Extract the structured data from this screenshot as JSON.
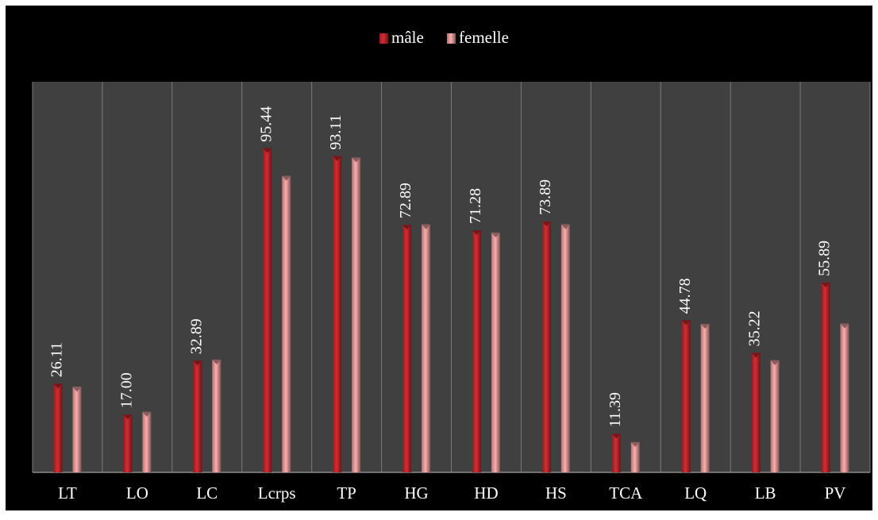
{
  "chart_data": {
    "type": "bar",
    "title": "",
    "xlabel": "",
    "ylabel": "",
    "categories": [
      "LT",
      "LO",
      "LC",
      "Lcrps",
      "TP",
      "HG",
      "HD",
      "HS",
      "TCA",
      "LQ",
      "LB",
      "PV"
    ],
    "series": [
      {
        "name": "mâle",
        "values": [
          26.11,
          17.0,
          32.89,
          95.44,
          93.11,
          72.89,
          71.28,
          73.89,
          11.39,
          44.78,
          35.22,
          55.89
        ],
        "data_labels": [
          "26.11",
          "17.00",
          "32.89",
          "95.44",
          "93.11",
          "72.89",
          "71.28",
          "73.89",
          "11.39",
          "44.78",
          "35.22",
          "55.89"
        ],
        "color": "#c0272d"
      },
      {
        "name": "femelle",
        "values": [
          25.2,
          17.8,
          33.2,
          87.3,
          92.7,
          73.0,
          70.6,
          73.0,
          8.9,
          43.7,
          33.0,
          43.8
        ],
        "color": "#e89a9a"
      }
    ],
    "ylim": [
      0,
      115
    ],
    "grid": false,
    "legend_position": "top-center",
    "colors": {
      "frame_background": "#000000",
      "plot_background": "#404040",
      "divider": "#7a7a7a",
      "text": "#ffffff"
    }
  }
}
